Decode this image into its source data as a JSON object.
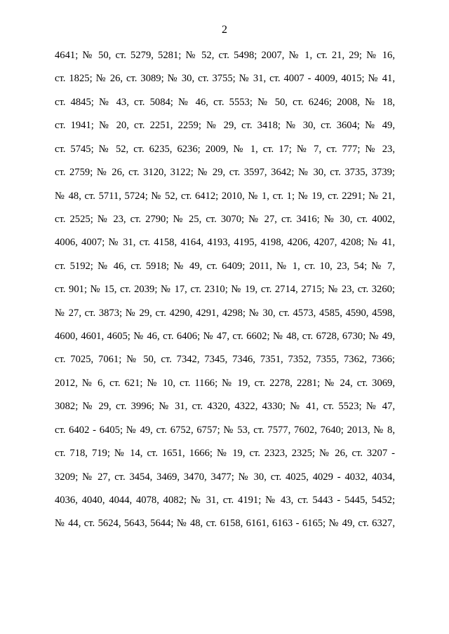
{
  "page_number": "2",
  "lines": [
    "4641; № 50, ст. 5279, 5281; № 52, ст. 5498; 2007, № 1, ст. 21, 29; № 16,",
    "ст. 1825; № 26, ст. 3089; № 30, ст. 3755; № 31, ст. 4007 - 4009, 4015; № 41,",
    "ст. 4845; № 43, ст. 5084; № 46, ст. 5553; № 50, ст. 6246; 2008, № 18,",
    "ст. 1941; № 20, ст. 2251, 2259; № 29, ст. 3418; № 30, ст. 3604; № 49,",
    "ст. 5745; № 52, ст. 6235, 6236; 2009, № 1, ст. 17; № 7, ст. 777; № 23,",
    "ст. 2759; № 26, ст. 3120, 3122; № 29, ст. 3597, 3642; № 30, ст. 3735, 3739;",
    "№ 48, ст. 5711, 5724; № 52, ст. 6412; 2010, № 1, ст. 1; № 19, ст. 2291; № 21,",
    "ст. 2525; № 23, ст. 2790; № 25, ст. 3070; № 27, ст. 3416; № 30, ст. 4002,",
    "4006, 4007; № 31, ст. 4158, 4164, 4193, 4195, 4198, 4206, 4207, 4208; № 41,",
    "ст. 5192; № 46, ст. 5918; № 49, ст. 6409; 2011, № 1, ст. 10, 23, 54; № 7,",
    "ст. 901; № 15, ст. 2039; № 17, ст. 2310; № 19, ст. 2714, 2715; № 23, ст. 3260;",
    "№ 27, ст. 3873; № 29, ст. 4290, 4291, 4298; № 30, ст. 4573, 4585, 4590, 4598,",
    "4600, 4601, 4605; № 46, ст. 6406; № 47, ст. 6602; № 48, ст. 6728, 6730; № 49,",
    "ст. 7025, 7061; № 50, ст. 7342, 7345, 7346, 7351, 7352, 7355, 7362, 7366;",
    "2012, № 6, ст. 621; № 10, ст. 1166; № 19, ст. 2278, 2281; № 24, ст. 3069,",
    "3082; № 29, ст. 3996; № 31, ст. 4320, 4322, 4330; № 41, ст. 5523; № 47,",
    "ст. 6402 - 6405; № 49, ст. 6752, 6757; № 53, ст. 7577, 7602, 7640; 2013, № 8,",
    "ст. 718, 719; № 14, ст. 1651, 1666; № 19, ст. 2323, 2325; № 26, ст. 3207 -",
    "3209; № 27, ст. 3454, 3469, 3470, 3477; № 30, ст. 4025, 4029 - 4032, 4034,",
    "4036, 4040, 4044, 4078, 4082; № 31, ст. 4191; № 43, ст. 5443 - 5445, 5452;",
    "№ 44, ст. 5624, 5643, 5644; № 48, ст. 6158, 6161, 6163 - 6165; № 49, ст. 6327,"
  ]
}
